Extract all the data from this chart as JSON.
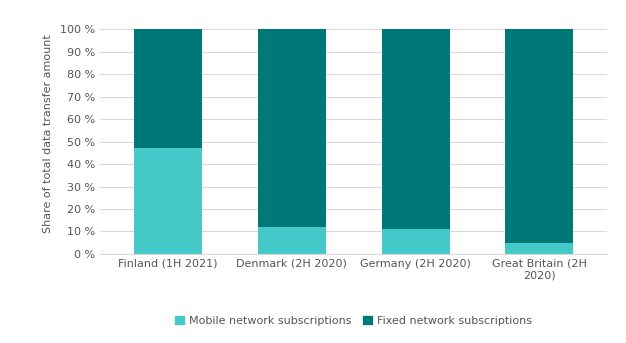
{
  "categories": [
    "Finland (1H 2021)",
    "Denmark (2H 2020)",
    "Germany (2H 2020)",
    "Great Britain (2H\n2020)"
  ],
  "mobile_values": [
    47,
    12,
    11,
    5
  ],
  "fixed_values": [
    53,
    88,
    89,
    95
  ],
  "mobile_color": "#45C8C8",
  "fixed_color": "#007878",
  "ylabel": "Share of total data transfer amount",
  "yticks": [
    0,
    10,
    20,
    30,
    40,
    50,
    60,
    70,
    80,
    90,
    100
  ],
  "ytick_labels": [
    "0 %",
    "10 %",
    "20 %",
    "30 %",
    "40 %",
    "50 %",
    "60 %",
    "70 %",
    "80 %",
    "90 %",
    "100 %"
  ],
  "legend_mobile": "Mobile network subscriptions",
  "legend_fixed": "Fixed network subscriptions",
  "background_color": "#ffffff",
  "grid_color": "#d9d9d9",
  "bar_width": 0.55
}
